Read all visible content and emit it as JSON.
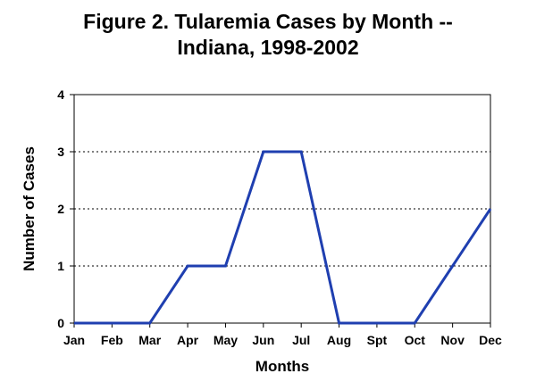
{
  "chart_data": {
    "type": "line",
    "title": "Figure 2. Tularemia Cases by Month --",
    "subtitle": "Indiana, 1998-2002",
    "xlabel": "Months",
    "ylabel": "Number of Cases",
    "categories": [
      "Jan",
      "Feb",
      "Mar",
      "Apr",
      "May",
      "Jun",
      "Jul",
      "Aug",
      "Spt",
      "Oct",
      "Nov",
      "Dec"
    ],
    "series": [
      {
        "values": [
          0,
          0,
          0,
          1,
          1,
          3,
          3,
          0,
          0,
          0,
          1,
          2
        ],
        "color": "#1f3fb0"
      }
    ],
    "ylim": [
      0,
      4
    ],
    "yticks": [
      0,
      1,
      2,
      3,
      4
    ],
    "grid": "horizontal-dotted",
    "legend": "none"
  }
}
